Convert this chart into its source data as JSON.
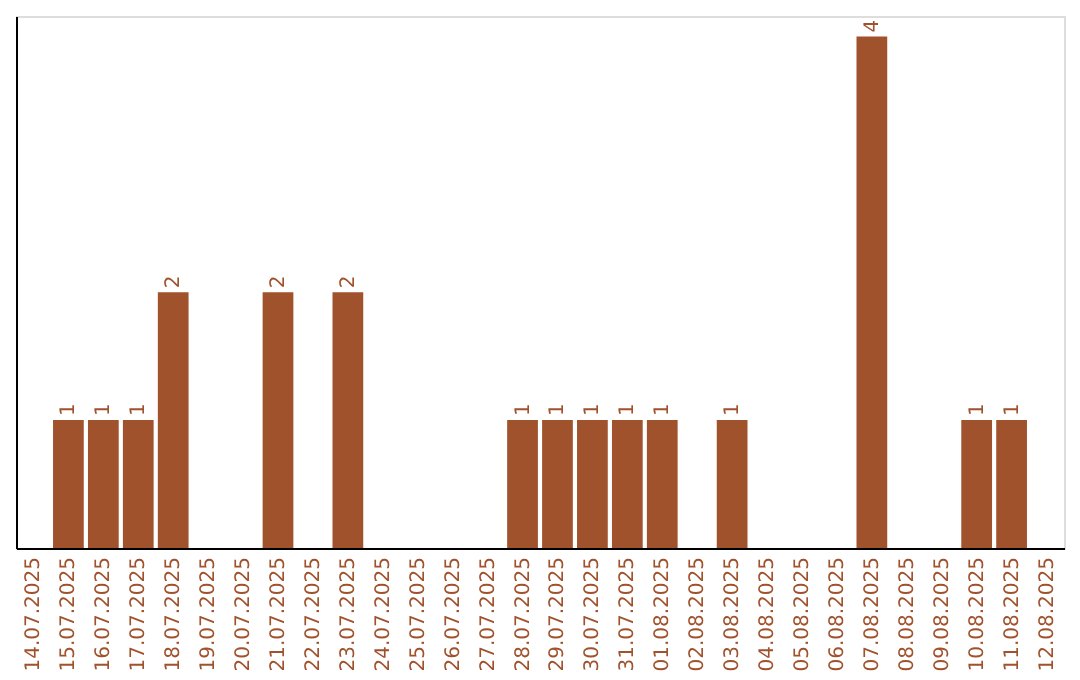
{
  "chart_data": {
    "type": "bar",
    "categories": [
      "14.07.2025",
      "15.07.2025",
      "16.07.2025",
      "17.07.2025",
      "18.07.2025",
      "19.07.2025",
      "20.07.2025",
      "21.07.2025",
      "22.07.2025",
      "23.07.2025",
      "24.07.2025",
      "25.07.2025",
      "26.07.2025",
      "27.07.2025",
      "28.07.2025",
      "29.07.2025",
      "30.07.2025",
      "31.07.2025",
      "01.08.2025",
      "02.08.2025",
      "03.08.2025",
      "04.08.2025",
      "05.08.2025",
      "06.08.2025",
      "07.08.2025",
      "08.08.2025",
      "09.08.2025",
      "10.08.2025",
      "11.08.2025",
      "12.08.2025"
    ],
    "values": [
      0,
      1,
      1,
      1,
      2,
      0,
      0,
      2,
      0,
      2,
      0,
      0,
      0,
      0,
      1,
      1,
      1,
      1,
      1,
      0,
      1,
      0,
      0,
      0,
      4,
      0,
      0,
      1,
      1,
      0
    ],
    "value_labels": [
      null,
      "1",
      "1",
      "1",
      "2",
      null,
      null,
      "2",
      null,
      "2",
      null,
      null,
      null,
      null,
      "1",
      "1",
      "1",
      "1",
      "1",
      null,
      "1",
      null,
      null,
      null,
      "4",
      null,
      null,
      "1",
      "1",
      null
    ],
    "color": "#a0522d",
    "grid": false,
    "tick_labels": "x"
  }
}
